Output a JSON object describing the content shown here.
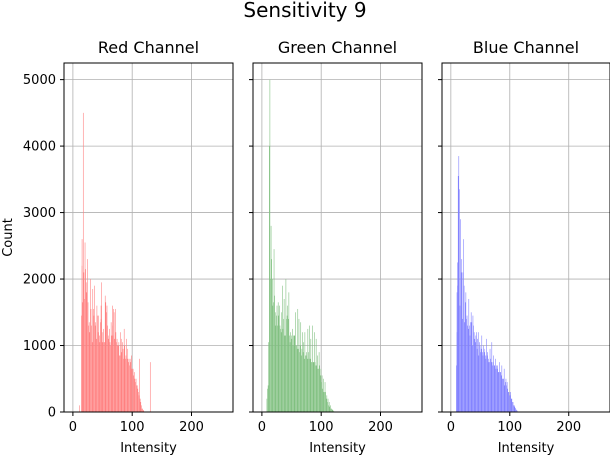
{
  "chart_data": {
    "type": "bar",
    "title": "Sensitivity 9",
    "xlabel": "Intensity",
    "ylabel": "Count",
    "xlim": [
      -15,
      270
    ],
    "ylim": [
      0,
      5250
    ],
    "xticks": [
      0,
      100,
      200
    ],
    "yticks": [
      0,
      1000,
      2000,
      3000,
      4000,
      5000
    ],
    "grid": true,
    "panels": [
      {
        "title": "Red Channel",
        "color": "#ff8080",
        "x_start": 14,
        "values": [
          1450,
          2200,
          1650,
          4500,
          2100,
          1700,
          2550,
          2150,
          1800,
          1950,
          2300,
          1650,
          1300,
          1350,
          1200,
          2000,
          1550,
          1300,
          1050,
          1850,
          1550,
          1450,
          1900,
          1300,
          1350,
          1100,
          1600,
          1450,
          1200,
          1450,
          1150,
          1050,
          1350,
          1400,
          1950,
          1050,
          1200,
          1250,
          1050,
          1050,
          1750,
          1650,
          1500,
          1600,
          1300,
          1150,
          1100,
          1250,
          1050,
          1000,
          1350,
          1150,
          1300,
          1150,
          1550,
          1500,
          1100,
          1550,
          1200,
          1050,
          1100,
          1000,
          1000,
          1050,
          850,
          850,
          1200,
          1100,
          900,
          1050,
          950,
          800,
          950,
          1000,
          800,
          850,
          1100,
          800,
          950,
          750,
          800,
          700,
          800,
          750,
          850,
          650,
          650,
          650,
          550,
          600,
          500,
          450,
          500,
          400,
          400,
          350,
          300,
          250,
          200,
          200,
          150,
          100,
          50,
          50,
          30,
          20
        ],
        "overrides": [
          {
            "x": 15,
            "v": 2600
          },
          {
            "x": 47,
            "v": 1600
          },
          {
            "x": 66,
            "v": 1600
          },
          {
            "x": 86,
            "v": 1250
          },
          {
            "x": 112,
            "v": 800
          },
          {
            "x": 130,
            "v": 750
          }
        ],
        "pre_bar": {
          "x": 11,
          "v": 100
        }
      },
      {
        "title": "Green Channel",
        "color": "#80c080",
        "x_start": 8,
        "values": [
          200,
          350,
          400,
          1050,
          4000,
          5000,
          2000,
          2800,
          2300,
          2000,
          1600,
          1650,
          2450,
          1750,
          1500,
          1300,
          1450,
          1600,
          1300,
          1650,
          1450,
          1600,
          1300,
          1250,
          1200,
          1500,
          1900,
          1250,
          1400,
          1700,
          1150,
          1150,
          2000,
          1400,
          1450,
          1600,
          1400,
          1800,
          1150,
          1050,
          1200,
          1150,
          1100,
          1250,
          1000,
          1150,
          1150,
          1150,
          1500,
          1000,
          1000,
          950,
          1550,
          950,
          1400,
          900,
          1000,
          1350,
          850,
          950,
          1200,
          900,
          1050,
          800,
          1200,
          850,
          850,
          900,
          800,
          1250,
          900,
          800,
          1300,
          800,
          1100,
          750,
          750,
          1300,
          750,
          750,
          1200,
          750,
          700,
          1100,
          700,
          850,
          650,
          650,
          900,
          700,
          550,
          650,
          450,
          550,
          350,
          500,
          300,
          300,
          450,
          300,
          200,
          250,
          150,
          200,
          100,
          150,
          80,
          100,
          50,
          50,
          40,
          30,
          20,
          10
        ],
        "overrides": [],
        "pre_bar": null
      },
      {
        "title": "Blue Channel",
        "color": "#8080ff",
        "x_start": 9,
        "values": [
          700,
          1800,
          1900,
          3550,
          3850,
          3350,
          1600,
          2900,
          2100,
          2300,
          1400,
          2100,
          2600,
          1900,
          1350,
          1650,
          1800,
          1400,
          1450,
          1300,
          1250,
          1700,
          1300,
          1150,
          1350,
          1500,
          1350,
          1000,
          1450,
          1300,
          1200,
          1100,
          1050,
          1150,
          1200,
          950,
          1100,
          1200,
          850,
          1050,
          1000,
          900,
          950,
          1150,
          900,
          850,
          1000,
          950,
          900,
          850,
          800,
          1100,
          850,
          900,
          800,
          750,
          750,
          950,
          800,
          750,
          1050,
          700,
          750,
          850,
          700,
          700,
          800,
          650,
          700,
          650,
          700,
          600,
          600,
          750,
          600,
          600,
          550,
          700,
          500,
          500,
          500,
          650,
          400,
          450,
          500,
          400,
          450,
          350,
          300,
          300,
          250,
          250,
          300,
          200,
          200,
          150,
          150,
          100,
          100,
          80,
          60,
          40,
          30,
          20
        ],
        "overrides": [
          {
            "x": 10,
            "v": 1200
          },
          {
            "x": 11,
            "v": 2250
          }
        ],
        "pre_bar": null
      }
    ]
  }
}
